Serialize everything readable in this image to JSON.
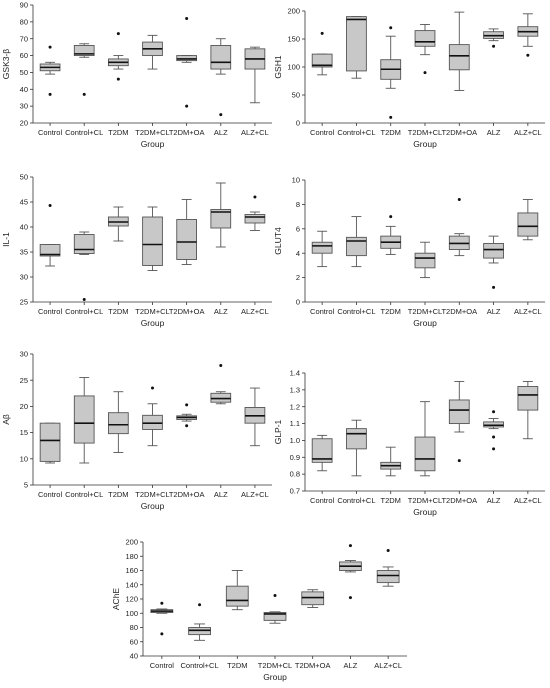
{
  "chart_data": [
    {
      "type": "box",
      "xlabel": "Group",
      "ylabel": "GSK3-β",
      "ylim": [
        20,
        90
      ],
      "yticks": [
        20,
        30,
        40,
        50,
        60,
        70,
        80,
        90
      ],
      "categories": [
        "Control",
        "Control+CL",
        "T2DM",
        "T2DM+CL",
        "T2DM+OA",
        "ALZ",
        "ALZ+CL"
      ],
      "boxes": [
        {
          "min": 49,
          "q1": 51,
          "median": 53,
          "q3": 55,
          "max": 56,
          "outliers": [
            65,
            37
          ]
        },
        {
          "min": 59,
          "q1": 60,
          "median": 61,
          "q3": 66,
          "max": 67,
          "outliers": [
            37
          ]
        },
        {
          "min": 52,
          "q1": 54,
          "median": 56,
          "q3": 58,
          "max": 60,
          "outliers": [
            73,
            46
          ]
        },
        {
          "min": 52,
          "q1": 60,
          "median": 64,
          "q3": 68,
          "max": 72,
          "outliers": []
        },
        {
          "min": 56,
          "q1": 57,
          "median": 58,
          "q3": 60,
          "max": 60,
          "outliers": [
            82,
            30
          ]
        },
        {
          "min": 49,
          "q1": 52,
          "median": 56,
          "q3": 66,
          "max": 70,
          "outliers": [
            25
          ]
        },
        {
          "min": 32,
          "q1": 52,
          "median": 58,
          "q3": 64,
          "max": 65,
          "outliers": []
        }
      ]
    },
    {
      "type": "box",
      "xlabel": "Group",
      "ylabel": "GSH1",
      "ylim": [
        0,
        200
      ],
      "yticks": [
        0,
        50,
        100,
        150,
        200
      ],
      "categories": [
        "Control",
        "Control+CL",
        "T2DM",
        "T2DM+CL",
        "T2DM+OA",
        "ALZ",
        "ALZ+CL"
      ],
      "boxes": [
        {
          "min": 86,
          "q1": 100,
          "median": 103,
          "q3": 123,
          "max": 123,
          "outliers": [
            160
          ]
        },
        {
          "min": 80,
          "q1": 93,
          "median": 185,
          "q3": 190,
          "max": 190,
          "outliers": []
        },
        {
          "min": 62,
          "q1": 78,
          "median": 96,
          "q3": 113,
          "max": 155,
          "outliers": [
            170,
            10
          ]
        },
        {
          "min": 122,
          "q1": 137,
          "median": 145,
          "q3": 165,
          "max": 176,
          "outliers": [
            90
          ]
        },
        {
          "min": 58,
          "q1": 95,
          "median": 120,
          "q3": 140,
          "max": 198,
          "outliers": []
        },
        {
          "min": 147,
          "q1": 151,
          "median": 156,
          "q3": 163,
          "max": 168,
          "outliers": [
            137
          ]
        },
        {
          "min": 137,
          "q1": 155,
          "median": 163,
          "q3": 172,
          "max": 195,
          "outliers": [
            121
          ]
        }
      ]
    },
    {
      "type": "box",
      "xlabel": "Group",
      "ylabel": "IL-1",
      "ylim": [
        25,
        50
      ],
      "yticks": [
        25,
        30,
        35,
        40,
        45,
        50
      ],
      "categories": [
        "Control",
        "Control+CL",
        "T2DM",
        "T2DM+CL",
        "T2DM+OA",
        "ALZ",
        "ALZ+CL"
      ],
      "boxes": [
        {
          "min": 32.2,
          "q1": 34.2,
          "median": 34.5,
          "q3": 36.5,
          "max": 36.5,
          "outliers": [
            44.3
          ]
        },
        {
          "min": 34.5,
          "q1": 34.7,
          "median": 35.5,
          "q3": 38.5,
          "max": 39,
          "outliers": [
            25.5
          ]
        },
        {
          "min": 37.2,
          "q1": 40.2,
          "median": 41,
          "q3": 42,
          "max": 44,
          "outliers": []
        },
        {
          "min": 31.3,
          "q1": 32.3,
          "median": 36.5,
          "q3": 42,
          "max": 44,
          "outliers": []
        },
        {
          "min": 32.5,
          "q1": 33.5,
          "median": 37,
          "q3": 41.5,
          "max": 45.5,
          "outliers": []
        },
        {
          "min": 36,
          "q1": 39.8,
          "median": 43,
          "q3": 43.5,
          "max": 48.8,
          "outliers": []
        },
        {
          "min": 39.3,
          "q1": 40.8,
          "median": 42,
          "q3": 42.5,
          "max": 43,
          "outliers": [
            46
          ]
        }
      ]
    },
    {
      "type": "box",
      "xlabel": "Group",
      "ylabel": "GLUT4",
      "ylim": [
        0,
        10
      ],
      "yticks": [
        0,
        2,
        4,
        6,
        8,
        10
      ],
      "categories": [
        "Control",
        "Control+CL",
        "T2DM",
        "T2DM+CL",
        "T2DM+OA",
        "ALZ",
        "ALZ+CL"
      ],
      "boxes": [
        {
          "min": 2.9,
          "q1": 4.0,
          "median": 4.6,
          "q3": 4.9,
          "max": 5.8,
          "outliers": []
        },
        {
          "min": 2.9,
          "q1": 3.8,
          "median": 5.0,
          "q3": 5.3,
          "max": 7.0,
          "outliers": []
        },
        {
          "min": 3.9,
          "q1": 4.4,
          "median": 4.9,
          "q3": 5.4,
          "max": 6.2,
          "outliers": [
            7.0
          ]
        },
        {
          "min": 2.0,
          "q1": 2.8,
          "median": 3.6,
          "q3": 4.0,
          "max": 4.9,
          "outliers": []
        },
        {
          "min": 3.8,
          "q1": 4.3,
          "median": 4.8,
          "q3": 5.4,
          "max": 5.6,
          "outliers": [
            8.4
          ]
        },
        {
          "min": 3.2,
          "q1": 3.6,
          "median": 4.3,
          "q3": 4.8,
          "max": 5.4,
          "outliers": [
            1.2
          ]
        },
        {
          "min": 5.1,
          "q1": 5.4,
          "median": 6.2,
          "q3": 7.3,
          "max": 8.4,
          "outliers": []
        }
      ]
    },
    {
      "type": "box",
      "xlabel": "Group",
      "ylabel": "Aβ",
      "ylim": [
        5,
        30
      ],
      "yticks": [
        5,
        10,
        15,
        20,
        25,
        30
      ],
      "categories": [
        "Control",
        "Control+CL",
        "T2DM",
        "T2DM+CL",
        "T2DM+OA",
        "ALZ",
        "ALZ+CL"
      ],
      "boxes": [
        {
          "min": 9.2,
          "q1": 9.5,
          "median": 13.5,
          "q3": 16.8,
          "max": 16.8,
          "outliers": []
        },
        {
          "min": 9.2,
          "q1": 13.0,
          "median": 16.8,
          "q3": 22.0,
          "max": 25.5,
          "outliers": []
        },
        {
          "min": 11.2,
          "q1": 14.8,
          "median": 16.5,
          "q3": 18.8,
          "max": 22.8,
          "outliers": []
        },
        {
          "min": 12.5,
          "q1": 15.6,
          "median": 16.8,
          "q3": 18.3,
          "max": 20.5,
          "outliers": [
            23.5
          ]
        },
        {
          "min": 17.2,
          "q1": 17.5,
          "median": 17.9,
          "q3": 18.2,
          "max": 18.5,
          "outliers": [
            20.3,
            16.3
          ]
        },
        {
          "min": 20.5,
          "q1": 20.8,
          "median": 21.5,
          "q3": 22.5,
          "max": 22.8,
          "outliers": [
            27.8
          ]
        },
        {
          "min": 12.5,
          "q1": 16.8,
          "median": 18.2,
          "q3": 19.8,
          "max": 23.5,
          "outliers": []
        }
      ]
    },
    {
      "type": "box",
      "xlabel": "Group",
      "ylabel": "GLP-1",
      "ylim": [
        0.7,
        1.4
      ],
      "yticks": [
        0.7,
        0.8,
        0.9,
        1.0,
        1.1,
        1.2,
        1.3,
        1.4
      ],
      "categories": [
        "Control",
        "Control+CL",
        "T2DM",
        "T2DM+CL",
        "T2DM+OA",
        "ALZ",
        "ALZ+CL"
      ],
      "boxes": [
        {
          "min": 0.82,
          "q1": 0.87,
          "median": 0.89,
          "q3": 1.01,
          "max": 1.03,
          "outliers": []
        },
        {
          "min": 0.79,
          "q1": 0.95,
          "median": 1.04,
          "q3": 1.07,
          "max": 1.12,
          "outliers": []
        },
        {
          "min": 0.79,
          "q1": 0.83,
          "median": 0.85,
          "q3": 0.87,
          "max": 0.96,
          "outliers": []
        },
        {
          "min": 0.79,
          "q1": 0.82,
          "median": 0.89,
          "q3": 1.02,
          "max": 1.23,
          "outliers": []
        },
        {
          "min": 1.05,
          "q1": 1.1,
          "median": 1.18,
          "q3": 1.24,
          "max": 1.35,
          "outliers": [
            0.88
          ]
        },
        {
          "min": 1.07,
          "q1": 1.08,
          "median": 1.09,
          "q3": 1.11,
          "max": 1.13,
          "outliers": [
            1.17,
            1.02,
            0.95
          ]
        },
        {
          "min": 1.01,
          "q1": 1.18,
          "median": 1.27,
          "q3": 1.32,
          "max": 1.35,
          "outliers": []
        }
      ]
    },
    {
      "type": "box",
      "xlabel": "Group",
      "ylabel": "AChE",
      "ylim": [
        40,
        200
      ],
      "yticks": [
        40,
        60,
        80,
        100,
        120,
        140,
        160,
        180,
        200
      ],
      "categories": [
        "Control",
        "Control+CL",
        "T2DM",
        "T2DM+CL",
        "T2DM+OA",
        "ALZ",
        "ALZ+CL"
      ],
      "boxes": [
        {
          "min": 100,
          "q1": 101,
          "median": 103,
          "q3": 105,
          "max": 106,
          "outliers": [
            114,
            71
          ]
        },
        {
          "min": 62,
          "q1": 70,
          "median": 76,
          "q3": 80,
          "max": 85,
          "outliers": [
            112
          ]
        },
        {
          "min": 105,
          "q1": 110,
          "median": 118,
          "q3": 138,
          "max": 160,
          "outliers": []
        },
        {
          "min": 86,
          "q1": 90,
          "median": 99,
          "q3": 101,
          "max": 102,
          "outliers": [
            125
          ]
        },
        {
          "min": 108,
          "q1": 112,
          "median": 122,
          "q3": 130,
          "max": 133,
          "outliers": []
        },
        {
          "min": 158,
          "q1": 160,
          "median": 166,
          "q3": 172,
          "max": 174,
          "outliers": [
            195,
            122
          ]
        },
        {
          "min": 138,
          "q1": 143,
          "median": 153,
          "q3": 160,
          "max": 165,
          "outliers": [
            188
          ]
        }
      ]
    }
  ],
  "style": {
    "box_fill": "#c8c8c8",
    "stroke": "#555555",
    "median": "#111111",
    "outlier": "#111111",
    "text": "#222222"
  }
}
